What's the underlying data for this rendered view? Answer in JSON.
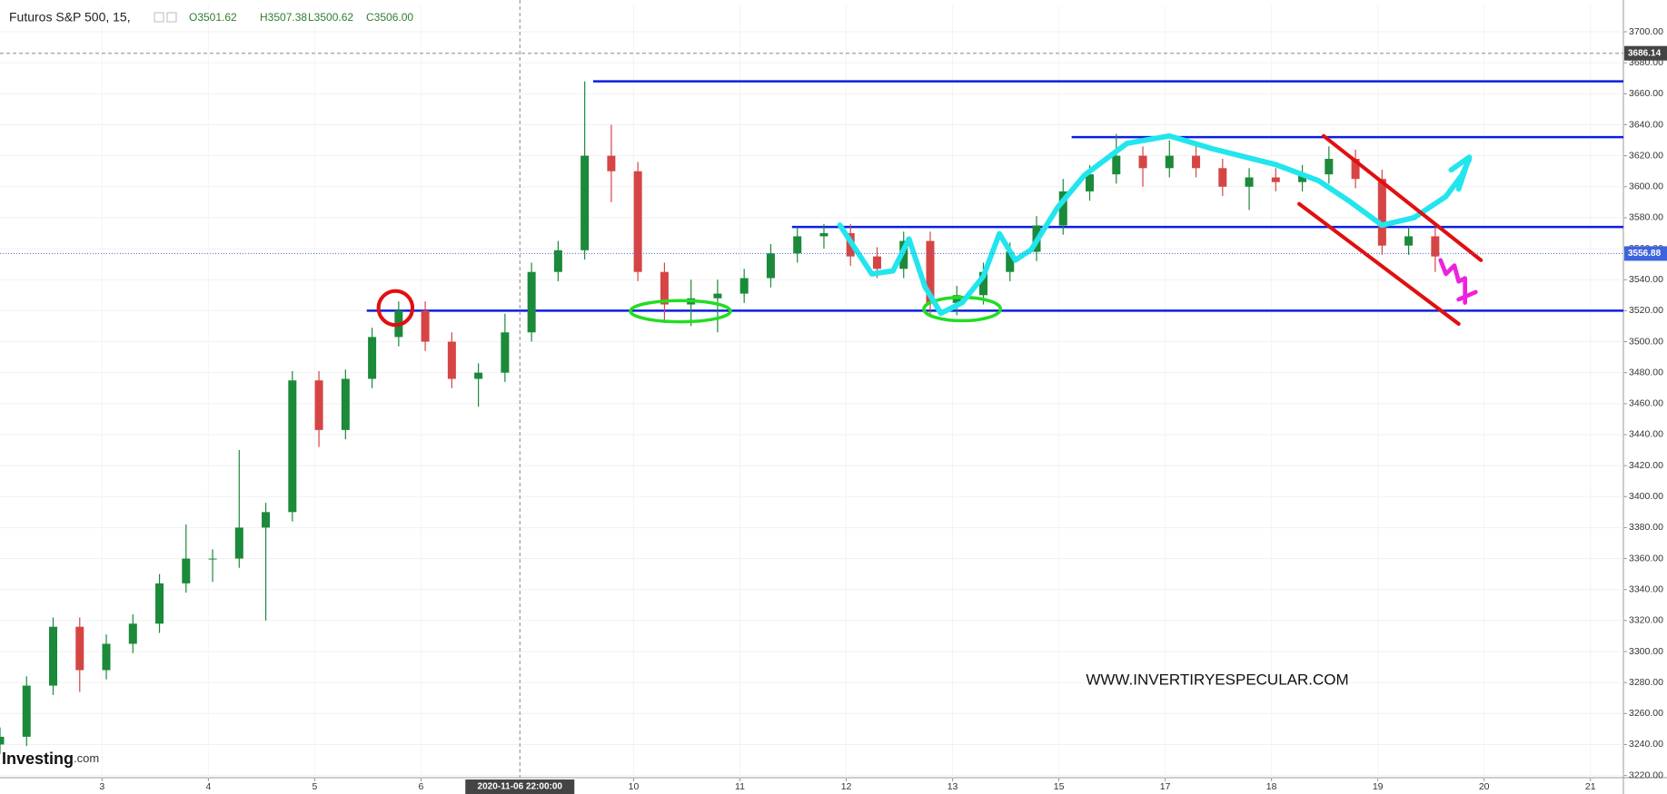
{
  "chart_data": {
    "type": "candlestick",
    "title": "Futuros S&P 500, 15,",
    "ohlc_legend": [
      "O3501.62",
      "H3507.38",
      "L3500.62",
      "C3506.00"
    ],
    "x": [
      0.04,
      0.29,
      0.54,
      0.79,
      1.04,
      1.29,
      1.54,
      1.79,
      2.04,
      2.29,
      2.54,
      2.79,
      3.04,
      3.29,
      3.54,
      3.79,
      4.04,
      4.29,
      4.54,
      4.79,
      5.04,
      5.29,
      5.54,
      5.79,
      6.04,
      6.29,
      6.54,
      6.79,
      7.04,
      7.29,
      7.54,
      7.79,
      8.04,
      8.29,
      8.54,
      8.79,
      9.04,
      9.29,
      9.54,
      9.79,
      10.04,
      10.29,
      10.54,
      10.79,
      11.04,
      11.29,
      11.54,
      11.79,
      12.04,
      12.29,
      12.54,
      12.79,
      13.04,
      13.29,
      13.54
    ],
    "open": [
      3240,
      3245,
      3278,
      3316,
      3288,
      3305,
      3318,
      3344,
      3360,
      3360,
      3380,
      3390,
      3475,
      3443,
      3476,
      3503,
      3520,
      3500,
      3476,
      3480,
      3506,
      3545,
      3559,
      3620,
      3610,
      3545,
      3524,
      3528,
      3531,
      3541,
      3557,
      3568,
      3570,
      3555,
      3547,
      3565,
      3525,
      3530,
      3545,
      3558,
      3575,
      3597,
      3608,
      3620,
      3612,
      3620,
      3612,
      3600,
      3606,
      3603,
      3608,
      3618,
      3605,
      3562,
      3568
    ],
    "high": [
      3251,
      3284,
      3322,
      3322,
      3311,
      3324,
      3350,
      3382,
      3366,
      3430,
      3396,
      3481,
      3481,
      3482,
      3509,
      3526,
      3526,
      3506,
      3486,
      3518,
      3551,
      3565,
      3668,
      3640,
      3616,
      3551,
      3540,
      3540,
      3547,
      3563,
      3574,
      3576,
      3576,
      3561,
      3571,
      3571,
      3536,
      3551,
      3564,
      3581,
      3605,
      3614,
      3634,
      3626,
      3630,
      3626,
      3618,
      3612,
      3612,
      3614,
      3626,
      3624,
      3611,
      3574,
      3574
    ],
    "low": [
      3234,
      3239,
      3272,
      3274,
      3282,
      3299,
      3312,
      3338,
      3345,
      3354,
      3320,
      3384,
      3432,
      3437,
      3470,
      3497,
      3494,
      3470,
      3458,
      3474,
      3500,
      3539,
      3553,
      3590,
      3539,
      3512,
      3510,
      3506,
      3525,
      3535,
      3551,
      3560,
      3549,
      3541,
      3541,
      3516,
      3517,
      3524,
      3539,
      3552,
      3569,
      3591,
      3602,
      3600,
      3606,
      3606,
      3594,
      3585,
      3597,
      3597,
      3602,
      3599,
      3556,
      3556,
      3545
    ],
    "close": [
      3245,
      3278,
      3316,
      3288,
      3305,
      3318,
      3344,
      3360,
      3360,
      3380,
      3390,
      3475,
      3443,
      3476,
      3503,
      3520,
      3500,
      3476,
      3480,
      3506,
      3545,
      3559,
      3620,
      3610,
      3545,
      3524,
      3528,
      3531,
      3541,
      3557,
      3568,
      3570,
      3555,
      3547,
      3565,
      3525,
      3530,
      3545,
      3558,
      3575,
      3597,
      3608,
      3620,
      3612,
      3620,
      3612,
      3600,
      3606,
      3603,
      3608,
      3618,
      3605,
      3562,
      3568,
      3555
    ],
    "up_color": "#1b8a3a",
    "down_color": "#d64545",
    "xlim": [
      0.04,
      15.31
    ],
    "ylim": [
      3218.6,
      3717
    ],
    "xticks": [
      {
        "value": 1,
        "label": "3"
      },
      {
        "value": 2,
        "label": "4"
      },
      {
        "value": 3,
        "label": "5"
      },
      {
        "value": 4,
        "label": "6"
      },
      {
        "value": 6,
        "label": "10"
      },
      {
        "value": 7,
        "label": "11"
      },
      {
        "value": 8,
        "label": "12"
      },
      {
        "value": 9,
        "label": "13"
      },
      {
        "value": 10,
        "label": "15"
      },
      {
        "value": 11,
        "label": "17"
      },
      {
        "value": 12,
        "label": "18"
      },
      {
        "value": 13,
        "label": "19"
      },
      {
        "value": 14,
        "label": "20"
      },
      {
        "value": 15,
        "label": "21"
      }
    ],
    "yticks": [
      {
        "value": 3220,
        "label": "3220.00"
      },
      {
        "value": 3240,
        "label": "3240.00"
      },
      {
        "value": 3260,
        "label": "3260.00"
      },
      {
        "value": 3280,
        "label": "3280.00"
      },
      {
        "value": 3300,
        "label": "3300.00"
      },
      {
        "value": 3320,
        "label": "3320.00"
      },
      {
        "value": 3340,
        "label": "3340.00"
      },
      {
        "value": 3360,
        "label": "3360.00"
      },
      {
        "value": 3380,
        "label": "3380.00"
      },
      {
        "value": 3400,
        "label": "3400.00"
      },
      {
        "value": 3420,
        "label": "3420.00"
      },
      {
        "value": 3440,
        "label": "3440.00"
      },
      {
        "value": 3460,
        "label": "3460.00"
      },
      {
        "value": 3480,
        "label": "3480.00"
      },
      {
        "value": 3500,
        "label": "3500.00"
      },
      {
        "value": 3520,
        "label": "3520.00"
      },
      {
        "value": 3540,
        "label": "3540.00"
      },
      {
        "value": 3560,
        "label": "3560.00"
      },
      {
        "value": 3580,
        "label": "3580.00"
      },
      {
        "value": 3600,
        "label": "3600.00"
      },
      {
        "value": 3620,
        "label": "3620.00"
      },
      {
        "value": 3640,
        "label": "3640.00"
      },
      {
        "value": 3660,
        "label": "3660.00"
      },
      {
        "value": 3680,
        "label": "3680.00"
      },
      {
        "value": 3700,
        "label": "3700.00"
      }
    ],
    "grid": true,
    "levels": [
      {
        "value": 3668,
        "from": 5.62
      },
      {
        "value": 3632,
        "from": 10.12
      },
      {
        "value": 3574,
        "from": 7.49
      },
      {
        "value": 3520,
        "from": 3.49
      }
    ],
    "level_color": "#0a1fe0",
    "crosshair_x": {
      "value": 4.93,
      "label": "2020-11-06 22:00:00"
    },
    "crosshair_y": 3686.14,
    "last_price": 3556.88,
    "watermark": "WWW.INVERTIRYESPECULAR.COM",
    "logo": [
      "Investing",
      ".com"
    ]
  }
}
